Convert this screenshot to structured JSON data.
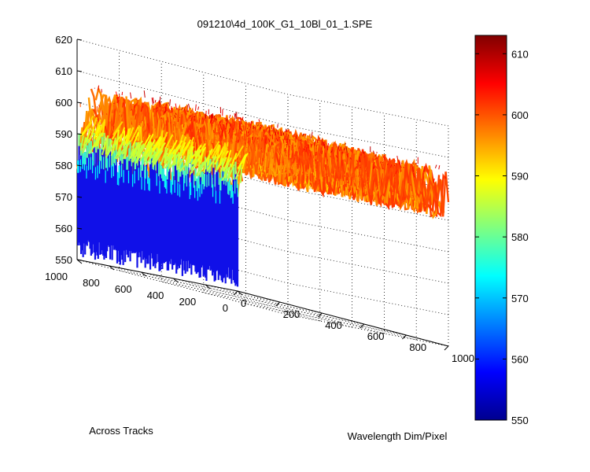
{
  "chart_data": {
    "type": "surface3d",
    "title": "091210\\4d_100K_G1_10Bl_01_1.SPE",
    "xlabel": "Wavelength Dim/Pixel",
    "ylabel": "Across Tracks",
    "zlabel": "",
    "x_ticks": [
      "0",
      "200",
      "400",
      "600",
      "800",
      "1000"
    ],
    "y_ticks": [
      "0",
      "200",
      "400",
      "600",
      "800",
      "1000"
    ],
    "z_ticks": [
      "550",
      "560",
      "570",
      "580",
      "590",
      "600",
      "610",
      "620"
    ],
    "xlim": [
      0,
      1000
    ],
    "ylim": [
      0,
      1000
    ],
    "zlim": [
      550,
      620
    ],
    "colorbar": {
      "ticks": [
        "550",
        "560",
        "570",
        "580",
        "590",
        "600",
        "610"
      ],
      "range": [
        550,
        613
      ],
      "colormap": "jet"
    },
    "surface": {
      "plateau_level": 598,
      "noise_amplitude": 8,
      "edge_level_at_wavelength_0": 558,
      "edge_region_fraction": 0.06,
      "peak_value": 613
    },
    "grid": true
  }
}
